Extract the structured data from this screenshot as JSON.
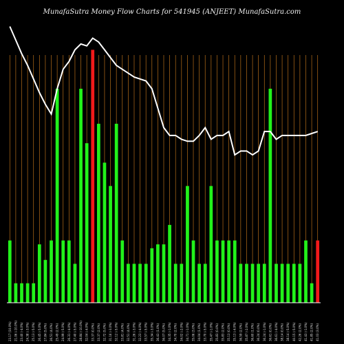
{
  "chart_data": {
    "type": "bar",
    "title": "MunafaSutra Money Flow Charts for 541945        (ANJEET) MunafaSutra.com",
    "colors": {
      "background": "#000000",
      "gridline": "#b86f1a",
      "up": "#22f21a",
      "down": "#f21a1a",
      "line": "#ffffff",
      "axis": "#ffffff"
    },
    "categories": [
      "23.17 (10.0%)",
      "21.06 (-10.0%)",
      "23.40 (-4.0%)",
      "24.38 (-3.0%)",
      "25.13 (-5.0%)",
      "26.45 (-5.0%)",
      "27.84 (5.0%)",
      "26.51 (4.0%)",
      "25.49 (2.0%)",
      "24.99 (-5.0%)",
      "26.31 (-4.0%)",
      "27.40 (-5.0%)",
      "28.84 (-10.0%)",
      "32.04 (-4.0%)",
      "33.37 (0.0%)",
      "33.37 (2.0%)",
      "32.72 (5.0%)",
      "31.16 (-3.0%)",
      "32.12 (-5.0%)",
      "33.81 (4.0%)",
      "32.51 (4.0%)",
      "31.26 (-3.0%)",
      "32.23 (-4.0%)",
      "33.57 (-5.0%)",
      "35.34 (-3.0%)",
      "36.43 (1.0%)",
      "36.07 (5.0%)",
      "34.35 (-1.0%)",
      "34.70 (2.0%)",
      "34.02 (-2.0%)",
      "34.71 (-1.0%)",
      "35.06 (3.0%)",
      "34.04 (1.0%)",
      "33.70 (-5.0%)",
      "35.47 (-1.0%)",
      "35.83 (0.0%)",
      "35.83 (2.0%)",
      "35.13 (0.0%)",
      "35.13 (-4.0%)",
      "36.59 (2.0%)",
      "35.87 (-2.0%)",
      "36.60 (1.0%)",
      "36.24 (0.0%)",
      "36.24 (-1.0%)",
      "36.61 (0.0%)",
      "36.61 (-4.0%)",
      "38.14 (0.0%)",
      "38.14 (-5.0%)",
      "40.15 (-5.0%)",
      "42.26 (2.0%)",
      "41.43 (-1.0%)",
      "41.85 (2.0%)",
      "41.03 (3.0%)"
    ],
    "values": [
      0.32,
      0.1,
      0.1,
      0.1,
      0.1,
      0.3,
      0.22,
      0.32,
      1.1,
      0.32,
      0.32,
      0.2,
      1.1,
      0.82,
      1.3,
      0.92,
      0.72,
      0.6,
      0.92,
      0.32,
      0.2,
      0.2,
      0.2,
      0.2,
      0.28,
      0.3,
      0.3,
      0.4,
      0.2,
      0.2,
      0.6,
      0.32,
      0.2,
      0.2,
      0.6,
      0.32,
      0.32,
      0.32,
      0.32,
      0.2,
      0.2,
      0.2,
      0.2,
      0.2,
      1.1,
      0.2,
      0.2,
      0.2,
      0.2,
      0.2,
      0.32,
      0.1,
      0.32
    ],
    "directions": [
      "up",
      "up",
      "up",
      "up",
      "up",
      "up",
      "up",
      "up",
      "up",
      "up",
      "up",
      "up",
      "up",
      "up",
      "down",
      "up",
      "up",
      "up",
      "up",
      "up",
      "up",
      "up",
      "up",
      "up",
      "up",
      "up",
      "up",
      "up",
      "up",
      "up",
      "up",
      "up",
      "up",
      "up",
      "up",
      "up",
      "up",
      "up",
      "up",
      "up",
      "up",
      "up",
      "up",
      "up",
      "up",
      "up",
      "up",
      "up",
      "up",
      "up",
      "up",
      "up",
      "down"
    ],
    "price_line": [
      1.42,
      1.35,
      1.28,
      1.22,
      1.15,
      1.08,
      1.02,
      0.97,
      1.1,
      1.2,
      1.24,
      1.3,
      1.33,
      1.32,
      1.36,
      1.34,
      1.3,
      1.26,
      1.22,
      1.2,
      1.18,
      1.16,
      1.15,
      1.14,
      1.1,
      1.0,
      0.9,
      0.86,
      0.86,
      0.84,
      0.83,
      0.83,
      0.86,
      0.9,
      0.84,
      0.86,
      0.86,
      0.88,
      0.76,
      0.78,
      0.78,
      0.76,
      0.78,
      0.88,
      0.88,
      0.84,
      0.86,
      0.86,
      0.86,
      0.86,
      0.86,
      0.87,
      0.88
    ],
    "ylim": [
      0,
      1.45
    ],
    "grid": true
  }
}
